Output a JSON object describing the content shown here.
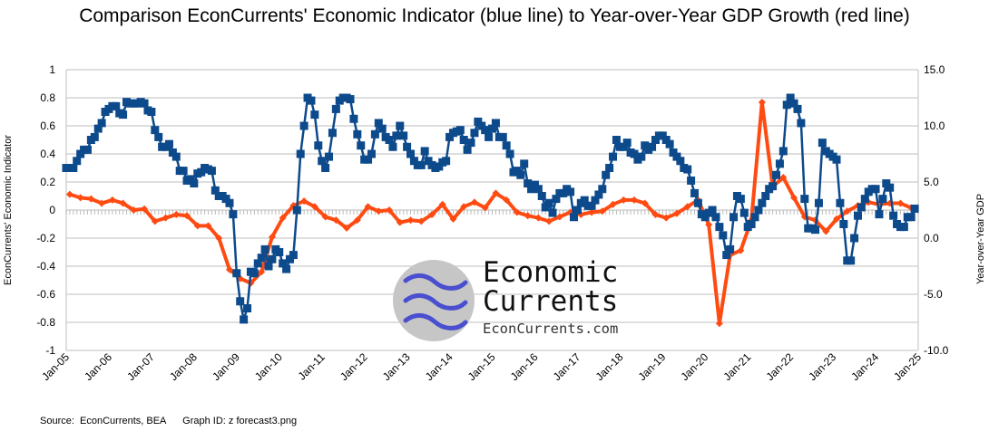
{
  "footer": {
    "source": "Source:  EconCurrents, BEA",
    "graph_id": "Graph ID: z forecast3.png"
  },
  "logo": {
    "line1": "Economic",
    "line2": "Currents",
    "url": "EconCurrents.com"
  },
  "colors": {
    "blue_series": "#0d4a8c",
    "red_series": "#ff4b12",
    "grid": "#d3d3d3",
    "logo_circle": "#c6c6c6",
    "logo_waves": "#4a4fcf"
  },
  "chart_data": {
    "type": "line",
    "title": "Comparison EconCurrents' Economic Indicator (blue line) to Year-over-Year GDP Growth (red line)",
    "ylabel": "EconCurrents' Economic Indicator",
    "y2label": "Year-over-Year GDP",
    "ylim": [
      -1,
      1
    ],
    "y2lim": [
      -10,
      15
    ],
    "grid": true,
    "legend": "none",
    "y_ticks": [
      "1",
      "0.8",
      "0.6",
      "0.4",
      "0.2",
      "0",
      "-0.2",
      "-0.4",
      "-0.6",
      "-0.8",
      "-1"
    ],
    "y2_ticks": [
      "15.0",
      "10.0",
      "5.0",
      "0.0",
      "-5.0",
      "-10.0"
    ],
    "x_ticks": [
      "Jan-05",
      "Jan-06",
      "Jan-07",
      "Jan-08",
      "Jan-09",
      "Jan-10",
      "Jan-11",
      "Jan-12",
      "Jan-13",
      "Jan-14",
      "Jan-15",
      "Jan-16",
      "Jan-17",
      "Jan-18",
      "Jan-19",
      "Jan-20",
      "Jan-21",
      "Jan-22",
      "Jan-23",
      "Jan-24",
      "Jan-25"
    ],
    "series": [
      {
        "axis": "left",
        "frequency": "monthly",
        "start": "Jan-05",
        "marker": "square",
        "values": [
          0.3,
          0.3,
          0.3,
          0.35,
          0.4,
          0.43,
          0.43,
          0.5,
          0.52,
          0.58,
          0.62,
          0.7,
          0.72,
          0.74,
          0.74,
          0.69,
          0.68,
          0.77,
          0.76,
          0.76,
          0.76,
          0.77,
          0.76,
          0.71,
          0.7,
          0.57,
          0.52,
          0.45,
          0.45,
          0.47,
          0.41,
          0.38,
          0.28,
          0.28,
          0.21,
          0.22,
          0.19,
          0.26,
          0.27,
          0.3,
          0.29,
          0.28,
          0.14,
          0.1,
          0.1,
          0.08,
          0.05,
          -0.03,
          -0.45,
          -0.65,
          -0.78,
          -0.7,
          -0.44,
          -0.45,
          -0.38,
          -0.34,
          -0.28,
          -0.4,
          -0.35,
          -0.28,
          -0.3,
          -0.38,
          -0.42,
          -0.35,
          -0.32,
          0.0,
          0.4,
          0.6,
          0.8,
          0.78,
          0.68,
          0.46,
          0.35,
          0.3,
          0.38,
          0.55,
          0.72,
          0.78,
          0.8,
          0.8,
          0.79,
          0.65,
          0.54,
          0.46,
          0.36,
          0.36,
          0.4,
          0.54,
          0.62,
          0.58,
          0.52,
          0.5,
          0.45,
          0.53,
          0.6,
          0.53,
          0.45,
          0.4,
          0.35,
          0.32,
          0.32,
          0.42,
          0.35,
          0.32,
          0.3,
          0.31,
          0.34,
          0.35,
          0.52,
          0.55,
          0.56,
          0.57,
          0.5,
          0.43,
          0.48,
          0.55,
          0.63,
          0.6,
          0.57,
          0.52,
          0.58,
          0.62,
          0.52,
          0.52,
          0.46,
          0.4,
          0.27,
          0.28,
          0.25,
          0.33,
          0.19,
          0.15,
          0.18,
          0.15,
          0.1,
          0.02,
          0.05,
          -0.02,
          0.08,
          0.12,
          0.12,
          0.15,
          0.13,
          -0.05,
          0.0,
          0.05,
          0.07,
          0.03,
          0.03,
          0.07,
          0.11,
          0.15,
          0.25,
          0.3,
          0.38,
          0.5,
          0.45,
          0.45,
          0.48,
          0.41,
          0.4,
          0.36,
          0.38,
          0.46,
          0.43,
          0.45,
          0.5,
          0.53,
          0.53,
          0.5,
          0.47,
          0.41,
          0.38,
          0.35,
          0.3,
          0.29,
          0.21,
          0.12,
          0.05,
          -0.03,
          -0.05,
          -0.02,
          0.0,
          -0.05,
          -0.12,
          -0.18,
          -0.32,
          -0.28,
          -0.05,
          0.1,
          0.08,
          -0.02,
          -0.12,
          -0.1,
          -0.05,
          0.0,
          0.05,
          0.1,
          0.15,
          0.17,
          0.25,
          0.33,
          0.42,
          0.75,
          0.8,
          0.76,
          0.72,
          0.62,
          0.08,
          -0.13,
          -0.13,
          -0.14,
          0.05,
          0.48,
          0.42,
          0.4,
          0.38,
          0.36,
          0.05,
          -0.1,
          -0.36,
          -0.36,
          -0.2,
          -0.04,
          0.02,
          0.08,
          0.13,
          0.15,
          0.15,
          -0.03,
          0.08,
          0.19,
          0.16,
          -0.04,
          -0.1,
          -0.12,
          -0.12,
          -0.05,
          -0.05,
          0.01
        ]
      },
      {
        "axis": "right",
        "frequency": "quarterly",
        "start": "Jan-05",
        "marker": "diamond",
        "values": [
          3.9,
          3.6,
          3.5,
          3.1,
          3.4,
          3.1,
          2.5,
          2.6,
          1.5,
          1.8,
          2.1,
          2.0,
          1.1,
          1.1,
          0.0,
          -2.8,
          -3.6,
          -4.0,
          -3.0,
          0.1,
          1.8,
          2.9,
          3.3,
          2.8,
          1.9,
          1.6,
          0.9,
          1.6,
          2.8,
          2.4,
          2.5,
          1.4,
          1.6,
          1.5,
          2.1,
          3.0,
          1.7,
          2.8,
          3.2,
          2.7,
          4.0,
          3.4,
          2.3,
          2.0,
          1.8,
          1.5,
          1.9,
          2.3,
          2.1,
          2.3,
          2.4,
          3.0,
          3.4,
          3.4,
          3.1,
          2.1,
          1.8,
          2.2,
          2.8,
          3.4,
          1.2,
          -7.6,
          -1.5,
          -1.1,
          1.6,
          12.1,
          4.6,
          5.4,
          3.6,
          1.9,
          1.6,
          0.6,
          1.7,
          2.4,
          2.9,
          3.2,
          3.0,
          3.1,
          3.1,
          2.7
        ]
      }
    ]
  }
}
